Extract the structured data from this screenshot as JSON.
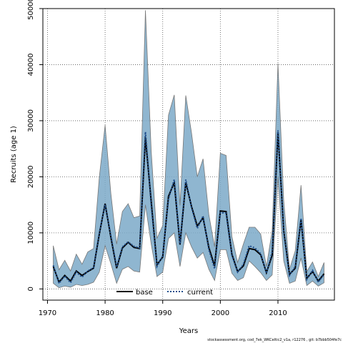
{
  "chart_data": {
    "type": "area",
    "xlabel": "Years",
    "ylabel": "Recruits (age 1)",
    "xlim": [
      1969.2,
      2019.8
    ],
    "ylim": [
      -2000,
      50000
    ],
    "x_ticks": [
      1970,
      1980,
      1990,
      2000,
      2010
    ],
    "y_ticks": [
      0,
      10000,
      20000,
      30000,
      40000,
      50000
    ],
    "grid": true,
    "grid_style": "dotted",
    "legend_position": "bottom-center",
    "colors": {
      "band": "#7BA9C8",
      "band_edge": "#777777",
      "base_line": "#000000",
      "current_line": "#1F4E8C"
    },
    "x": [
      1971,
      1972,
      1973,
      1974,
      1975,
      1976,
      1977,
      1978,
      1979,
      1980,
      1981,
      1982,
      1983,
      1984,
      1985,
      1986,
      1987,
      1988,
      1989,
      1990,
      1991,
      1992,
      1993,
      1994,
      1995,
      1996,
      1997,
      1998,
      1999,
      2000,
      2001,
      2002,
      2003,
      2004,
      2005,
      2006,
      2007,
      2008,
      2009,
      2010,
      2011,
      2012,
      2013,
      2014,
      2015,
      2016,
      2017,
      2018
    ],
    "series": [
      {
        "name": "base",
        "style": "solid",
        "values": [
          4000,
          1200,
          2400,
          1400,
          3200,
          2400,
          3100,
          3700,
          9800,
          15200,
          9200,
          3700,
          7300,
          8300,
          7400,
          7200,
          27000,
          15600,
          4300,
          5700,
          16500,
          19000,
          7900,
          19000,
          14700,
          11200,
          12700,
          7400,
          4100,
          13900,
          13800,
          6200,
          3100,
          4100,
          7200,
          7000,
          6100,
          2900,
          6000,
          28000,
          10400,
          2600,
          3700,
          12400,
          1900,
          3100,
          1400,
          2700
        ]
      },
      {
        "name": "current",
        "style": "dotted",
        "values": [
          4200,
          1000,
          2300,
          1100,
          3000,
          2100,
          3200,
          3800,
          10000,
          15000,
          9500,
          3900,
          7500,
          8400,
          7600,
          7300,
          28000,
          15000,
          4000,
          5900,
          16000,
          19500,
          8100,
          19500,
          14500,
          10800,
          13000,
          7000,
          3600,
          13600,
          13500,
          6000,
          3000,
          4400,
          7700,
          7300,
          6300,
          2800,
          6600,
          28300,
          10100,
          2400,
          4000,
          12600,
          1700,
          3300,
          1200,
          2600
        ]
      }
    ],
    "band_lower": [
      1000,
      200,
      500,
      300,
      800,
      600,
      800,
      1200,
      3000,
      7700,
      4500,
      1000,
      3500,
      4000,
      3200,
      3000,
      15000,
      8000,
      2200,
      3000,
      9000,
      10000,
      4000,
      10000,
      7500,
      5500,
      6500,
      3500,
      1500,
      7000,
      7000,
      2800,
      1500,
      2000,
      5000,
      4000,
      2900,
      1500,
      2500,
      20000,
      5000,
      1000,
      1400,
      5500,
      600,
      1400,
      500,
      1100
    ],
    "band_upper": [
      7700,
      3400,
      5100,
      3200,
      6200,
      4400,
      6600,
      7200,
      20000,
      29200,
      17000,
      8000,
      13800,
      15200,
      12700,
      13000,
      49700,
      24600,
      9000,
      11300,
      31000,
      34600,
      14900,
      34500,
      27800,
      20000,
      23200,
      13300,
      7500,
      24200,
      23800,
      9400,
      4700,
      8000,
      11000,
      11000,
      9800,
      4000,
      10400,
      40200,
      15800,
      3500,
      6800,
      18500,
      3100,
      4800,
      2200,
      4700
    ],
    "legend": [
      "base",
      "current"
    ]
  },
  "footer_text": "stockassessment.org, cod_7ek_WKCeltic2_v1a, r12276 , git: b7bbb504fe7c"
}
